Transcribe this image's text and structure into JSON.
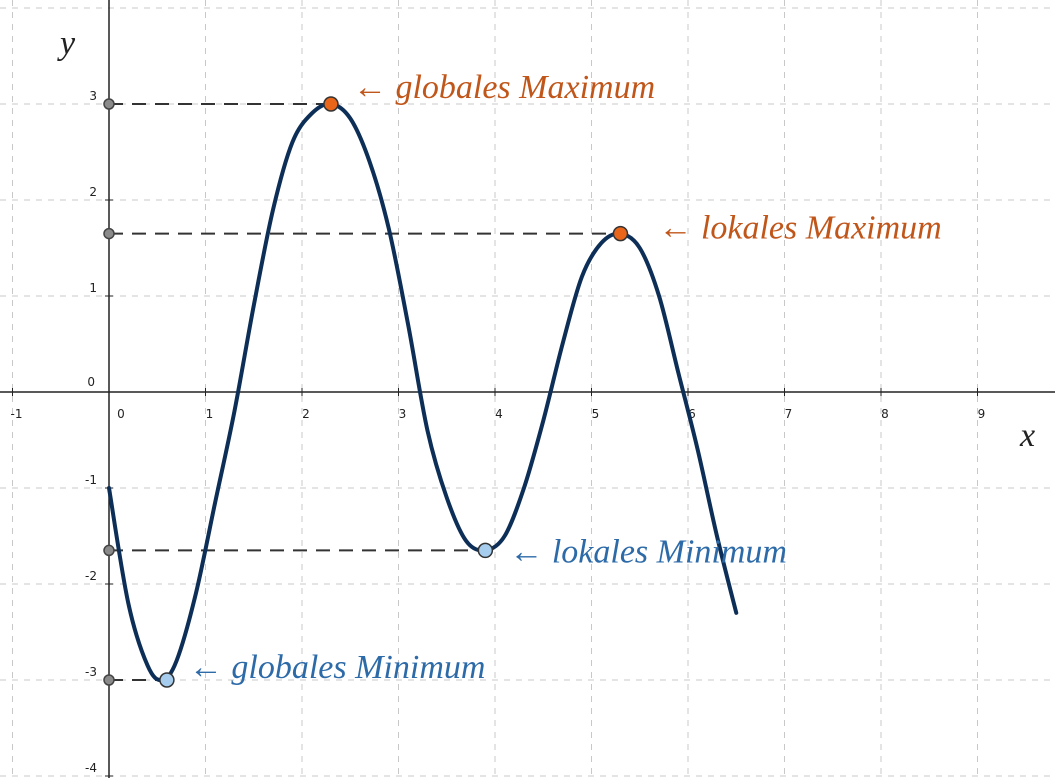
{
  "chart_data": {
    "type": "line",
    "xlabel": "x",
    "ylabel": "y",
    "xlim": [
      -1.1,
      9.9
    ],
    "ylim": [
      -4.1,
      4.1
    ],
    "grid": true,
    "x_ticks": [
      "-1",
      "0",
      "1",
      "2",
      "3",
      "4",
      "5",
      "6",
      "7",
      "8",
      "9"
    ],
    "y_ticks": [
      "-4",
      "-3",
      "-2",
      "-1",
      "0",
      "1",
      "2",
      "3"
    ],
    "series": [
      {
        "color": "#0d2f57",
        "x": [
          0,
          0.2,
          0.4,
          0.55,
          0.7,
          0.9,
          1.1,
          1.3,
          1.5,
          1.7,
          1.9,
          2.1,
          2.3,
          2.5,
          2.7,
          2.9,
          3.1,
          3.3,
          3.5,
          3.7,
          3.9,
          4.1,
          4.3,
          4.5,
          4.7,
          4.9,
          5.1,
          5.3,
          5.5,
          5.7,
          5.9,
          6.1,
          6.3,
          6.5
        ],
        "y": [
          -1.0,
          -2.2,
          -2.85,
          -3.0,
          -2.8,
          -2.1,
          -1.15,
          -0.2,
          0.9,
          1.9,
          2.6,
          2.9,
          3.0,
          2.85,
          2.4,
          1.7,
          0.7,
          -0.4,
          -1.1,
          -1.55,
          -1.65,
          -1.5,
          -1.0,
          -0.3,
          0.5,
          1.2,
          1.55,
          1.65,
          1.5,
          1.0,
          0.2,
          -0.6,
          -1.5,
          -2.3
        ]
      }
    ],
    "points": [
      {
        "label": "globales  Maximum",
        "x": 2.3,
        "y": 3.0,
        "color": "#e8651a"
      },
      {
        "label": "lokales  Maximum",
        "x": 5.3,
        "y": 1.65,
        "color": "#e8651a"
      },
      {
        "label": "lokales  Minimum",
        "x": 3.9,
        "y": -1.65,
        "color": "#a7cdee"
      },
      {
        "label": "globales  Minimum",
        "x": 0.6,
        "y": -3.0,
        "color": "#a7cdee"
      }
    ],
    "annotations": [
      {
        "text": "globales  Maximum",
        "arrow": "←",
        "color": "#c0561a"
      },
      {
        "text": "lokales  Maximum",
        "arrow": "←",
        "color": "#c0561a"
      },
      {
        "text": "lokales  Minimum",
        "arrow": "←",
        "color": "#2d6aa8"
      },
      {
        "text": "globales  Minimum",
        "arrow": "←",
        "color": "#2d6aa8"
      }
    ]
  }
}
